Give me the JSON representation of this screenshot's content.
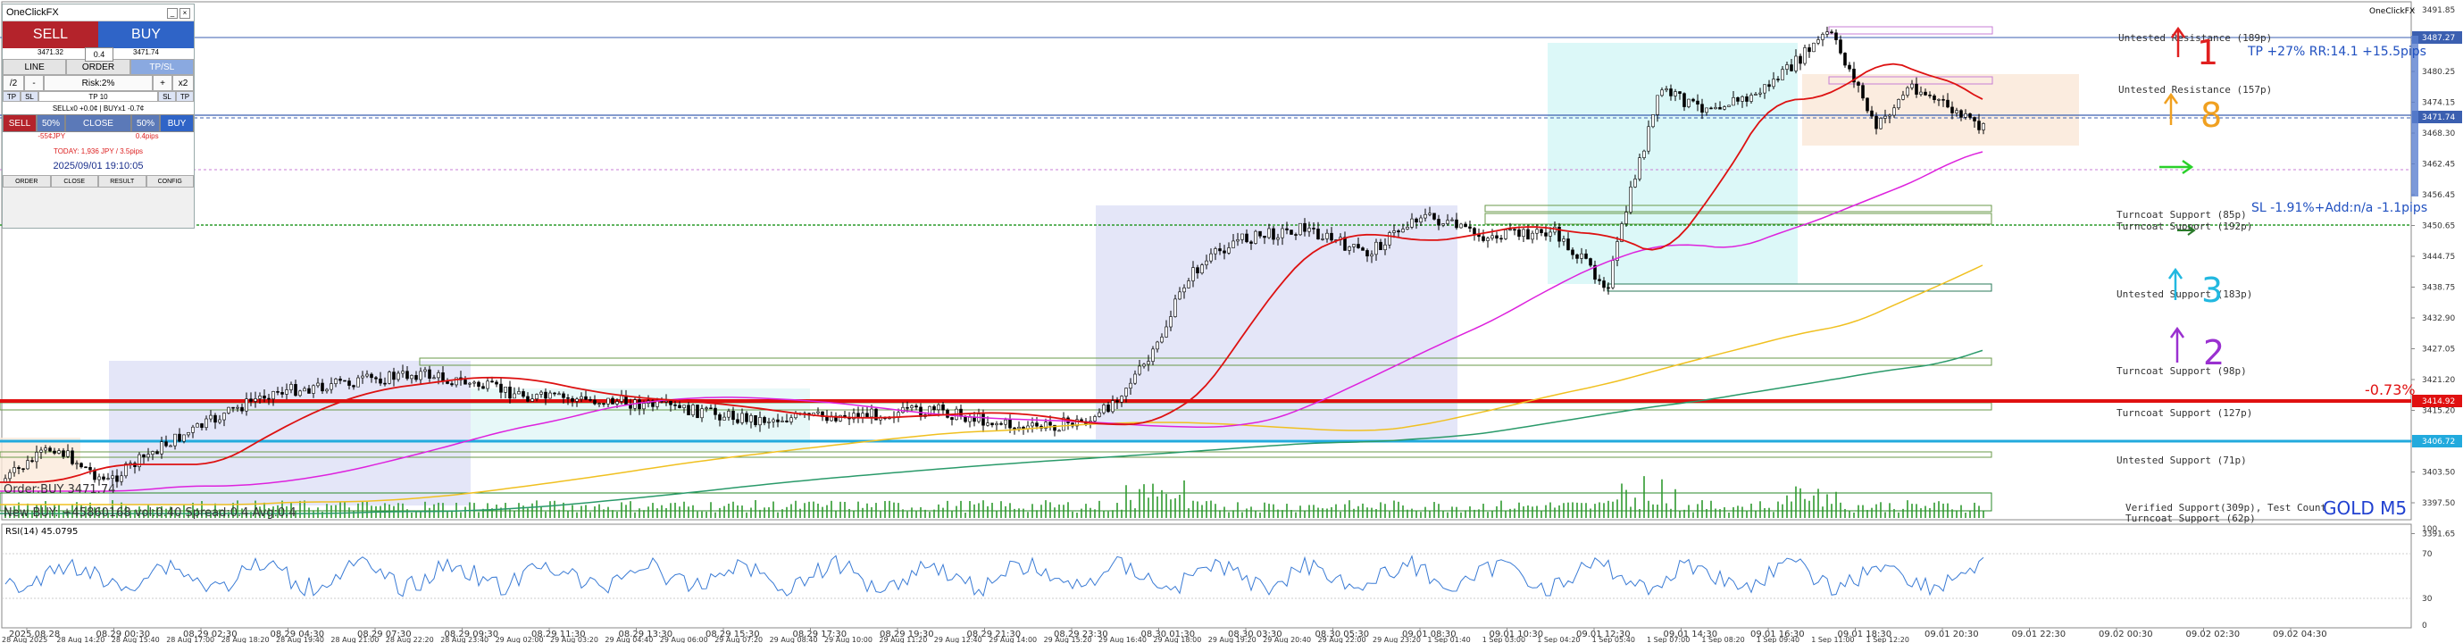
{
  "window_title": "OneClickFX",
  "symbol_label": "GOLD M5",
  "panel": {
    "title": "OneClickFX",
    "sell_label": "SELL",
    "buy_label": "BUY",
    "lot": "0.4",
    "sell_price": "3471.32",
    "buy_price": "3471.74",
    "tabs": [
      "LINE",
      "ORDER",
      "TP/SL"
    ],
    "divide": "/2",
    "minus": "-",
    "risk": "Risk:2%",
    "plus": "+",
    "times": "x2",
    "tp_left": "TP",
    "sl_left": "SL",
    "tp_value": "TP 10",
    "sl_value": "SL",
    "tp_right": "TP",
    "info": "SELLx0 +0.0¢  |  BUYx1 -0.7¢",
    "order_sell": "SELL",
    "order_50a": "50%",
    "order_close": "CLOSE",
    "order_50b": "50%",
    "order_buy": "BUY",
    "pnl_left": "-55¢JPY",
    "pnl_right": "0.4pips",
    "today": "TODAY: 1,936 JPY / 3.5pips",
    "datetime": "2025/09/01  19:10:05",
    "footer": [
      "ORDER",
      "CLOSE",
      "RESULT",
      "CONFIG"
    ]
  },
  "price_axis": [
    "3491.85",
    "3486.00",
    "3480.25",
    "3474.15",
    "3468.30",
    "3462.45",
    "3456.45",
    "3450.65",
    "3444.75",
    "3438.75",
    "3432.90",
    "3427.05",
    "3421.20",
    "3415.20",
    "3409.35",
    "3403.50",
    "3397.50",
    "3391.65"
  ],
  "price_badges": [
    {
      "text": "3487.27",
      "color": "#3b5fb0"
    },
    {
      "text": "3471.74",
      "color": "#3b5fb0"
    },
    {
      "text": "3414.92",
      "color": "#e01010"
    },
    {
      "text": "3406.72",
      "color": "#22aadd"
    }
  ],
  "rsi_label": "RSI(14) 45.0795",
  "rsi_axis": [
    "100",
    "70",
    "30",
    "0"
  ],
  "time_axis_top": [
    "2025.08.28",
    "08.29 00:30",
    "08.29 02:30",
    "08.29 04:30",
    "08.29 07:30",
    "08.29 09:30",
    "08.29 11:30",
    "08.29 13:30",
    "08.29 15:30",
    "08.29 17:30",
    "08.29 19:30",
    "08.29 21:30",
    "08.29 23:30",
    "08.30 01:30",
    "08.30 03:30",
    "08.30 05:30",
    "09.01 08:30",
    "09.01 10:30",
    "09.01 12:30",
    "09.01 14:30",
    "09.01 16:30",
    "09.01 18:30",
    "09.01 20:30",
    "09.01 22:30",
    "09.02 00:30",
    "09.02 02:30",
    "09.02 04:30"
  ],
  "time_axis_bottom": [
    "28 Aug 2025",
    "28 Aug 14:20",
    "28 Aug 15:40",
    "28 Aug 17:00",
    "28 Aug 18:20",
    "28 Aug 19:40",
    "28 Aug 21:00",
    "28 Aug 22:20",
    "28 Aug 23:40",
    "29 Aug 02:00",
    "29 Aug 03:20",
    "29 Aug 04:40",
    "29 Aug 06:00",
    "29 Aug 07:20",
    "29 Aug 08:40",
    "29 Aug 10:00",
    "29 Aug 11:20",
    "29 Aug 12:40",
    "29 Aug 14:00",
    "29 Aug 15:20",
    "29 Aug 16:40",
    "29 Aug 18:00",
    "29 Aug 19:20",
    "29 Aug 20:40",
    "29 Aug 22:00",
    "29 Aug 23:20",
    "1 Sep 01:40",
    "1 Sep 03:00",
    "1 Sep 04:20",
    "1 Sep 05:40",
    "1 Sep 07:00",
    "1 Sep 08:20",
    "1 Sep 09:40",
    "1 Sep 11:00",
    "1 Sep 12:20"
  ],
  "zone_labels": [
    "Untested Resistance (189p)",
    "Untested Resistance (157p)",
    "Turncoat Support (85p)",
    "Turncoat Support (192p)",
    "Untested Support (183p)",
    "Turncoat Support (98p)",
    "Turncoat Support (127p)",
    "Untested Support (71p)",
    "Verified Support(309p), Test Count",
    "Turncoat Support (62p)"
  ],
  "annotations": {
    "tp": "TP +27% RR:14.1 +15.5pips",
    "sl": "SL -1.91%+Add:n/a -1.1pips",
    "pct": "-0.73%",
    "num1": "1",
    "num8": "8",
    "num3": "3",
    "num2": "2",
    "order_line": "Order:BUY 3471.74",
    "bottom_left": "New BUY: +45860168 vol:0.40 Spread:0.4 Avg:0.4"
  },
  "colors": {
    "resistance_line": "#3b5fb0",
    "red_level": "#e01010",
    "cyan_level": "#22aadd",
    "support_green": "#2a9a2a",
    "ma_red": "#dd1111",
    "ma_magenta": "#dd22dd",
    "ma_yellow": "#f0c020",
    "ma_green": "#2a9a6a",
    "rsi_line": "#3a7bd5",
    "volume": "#2f9a2f"
  }
}
